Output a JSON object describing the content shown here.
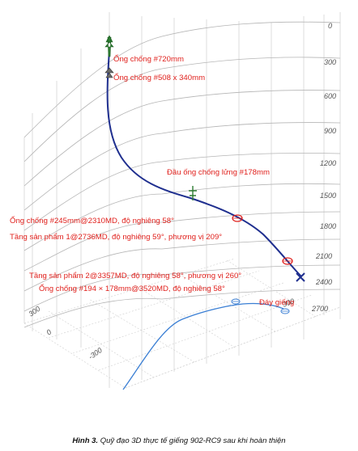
{
  "figure": {
    "depth_ticks": [
      "0",
      "300",
      "600",
      "900",
      "1200",
      "1500",
      "1800",
      "2100",
      "2400",
      "2700"
    ],
    "front_ticks": [
      "300",
      "0",
      "-300"
    ],
    "right_ticks": [
      "300"
    ],
    "annotations": {
      "casing_720": "Ống chống #720mm",
      "casing_508": "Ống chống #508 x 340mm",
      "liner_hanger": "Đầu ống chống lửng #178mm",
      "casing_245": "Ống chống #245mm@2310MD, độ nghiêng 58°",
      "pay_zone_1": "Tầng sản phẩm 1@2736MD, độ nghiêng 59°, phương vị 209°",
      "pay_zone_2": "Tầng sản phẩm 2@3357MD, độ nghiêng 58°, phương vị 260°",
      "casing_194": "Ống chống #194 × 178mm@3520MD, độ nghiêng 58°",
      "well_bottom": "Đáy giếng"
    },
    "colors": {
      "trajectory": "#1f2f8f",
      "projection": "#3b7fd4",
      "label": "#e0201c",
      "marker": "#e0201c"
    }
  },
  "caption": {
    "label": "Hình 3.",
    "text": " Quỹ đạo 3D thực tế giếng 902-RC9 sau khi hoàn thiện"
  }
}
